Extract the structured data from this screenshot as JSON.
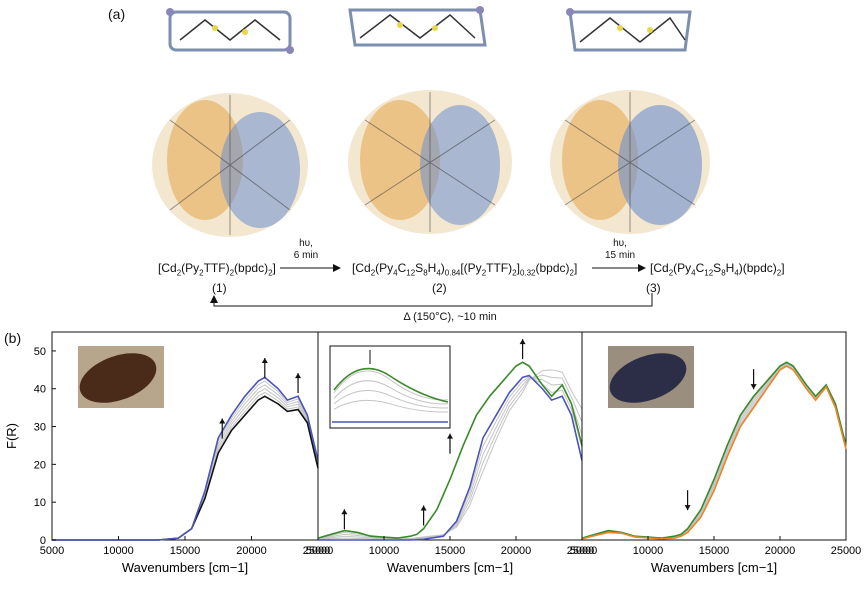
{
  "panel_a_label": "(a)",
  "panel_b_label": "(b)",
  "scheme": {
    "compound1": "[Cd2(Py2TTF)2(bpdc)2]",
    "compound2": "[Cd2(Py4C12S8H4)0.84[(Py2TTF)2]0.32(bpdc)2]",
    "compound3": "[Cd2(Py4C12S8H4)(bpdc)2]",
    "num1": "(1)",
    "num2": "(2)",
    "num3": "(3)",
    "step1_top": "hυ,",
    "step1_bottom": "6 min",
    "step2_top": "hυ,",
    "step2_bottom": "15 min",
    "reverse": "Δ (150°C), ~10 min"
  },
  "colors": {
    "black": "#111111",
    "blue": "#4a55b8",
    "green": "#3a8a2a",
    "orange": "#e8862a",
    "gray": "#c4c4c4",
    "cd_node": "#8a86b8",
    "sulfur": "#e6d84a",
    "oxygen": "#c0392b"
  },
  "chart_data": [
    {
      "type": "line",
      "xlabel": "Wavenumbers [cm−1]",
      "ylabel": "F(R)",
      "xlim": [
        5000,
        25000
      ],
      "ylim": [
        0,
        55
      ],
      "xticks": [
        "5000",
        "10000",
        "15000",
        "20000",
        "25000"
      ],
      "yticks": [
        "0",
        "10",
        "20",
        "30",
        "40",
        "50"
      ],
      "series": [
        {
          "color": "black",
          "x": [
            5000,
            10000,
            13000,
            14500,
            15500,
            16500,
            17500,
            18500,
            19500,
            20500,
            21000,
            22000,
            22700,
            23500,
            24200,
            25000
          ],
          "values": [
            0,
            0,
            0,
            0.5,
            3,
            11,
            23,
            29,
            33,
            37,
            38,
            36,
            34,
            34.5,
            31,
            19
          ]
        },
        {
          "color": "blue",
          "x": [
            5000,
            10000,
            13000,
            14500,
            15500,
            16500,
            17500,
            18500,
            19500,
            20500,
            21000,
            22000,
            22700,
            23500,
            24200,
            25000
          ],
          "values": [
            0,
            0,
            0,
            0.5,
            3,
            13,
            27,
            33,
            38,
            42,
            43,
            40,
            37,
            38,
            33,
            21
          ]
        }
      ],
      "inset": "photo of crystal (dark)",
      "arrows": "up"
    },
    {
      "type": "line",
      "xlabel": "Wavenumbers [cm−1]",
      "ylabel": "",
      "xlim": [
        5000,
        25000
      ],
      "ylim": [
        0,
        55
      ],
      "xticks": [
        "5000",
        "10000",
        "15000",
        "20000",
        "25000"
      ],
      "series": [
        {
          "color": "blue",
          "x": [
            5000,
            6000,
            7000,
            8000,
            10000,
            12000,
            13000,
            14500,
            15500,
            16500,
            17500,
            18500,
            19500,
            20500,
            21000,
            22000,
            22700,
            23500,
            24200,
            25000
          ],
          "values": [
            0,
            0,
            0,
            0,
            0,
            0,
            0.2,
            1,
            5,
            14,
            27,
            33,
            39,
            43,
            43.5,
            40,
            37,
            38,
            33,
            21
          ]
        },
        {
          "color": "green",
          "x": [
            5000,
            6000,
            7000,
            8000,
            9000,
            11000,
            12000,
            12500,
            13000,
            14000,
            15000,
            16000,
            17000,
            18000,
            19000,
            20000,
            20500,
            21000,
            22000,
            22700,
            23500,
            24200,
            25000
          ],
          "values": [
            0.5,
            1.5,
            2.5,
            2,
            1,
            0.5,
            1,
            1.5,
            3,
            8,
            16,
            25,
            33,
            38,
            42,
            46,
            47,
            46,
            41,
            38,
            41,
            36,
            25
          ]
        }
      ],
      "inset": "zoom of green peak",
      "arrows": "up"
    },
    {
      "type": "line",
      "xlabel": "Wavenumbers [cm−1]",
      "ylabel": "",
      "xlim": [
        5000,
        25000
      ],
      "ylim": [
        0,
        55
      ],
      "xticks": [
        "5000",
        "10000",
        "15000",
        "20000",
        "25000"
      ],
      "series": [
        {
          "color": "green",
          "x": [
            5000,
            6000,
            7000,
            8000,
            9000,
            11000,
            12000,
            12500,
            13000,
            14000,
            15000,
            16000,
            17000,
            18000,
            19000,
            20000,
            20500,
            21000,
            22000,
            22700,
            23500,
            24200,
            25000
          ],
          "values": [
            0.5,
            1.5,
            2.5,
            2,
            1,
            0.5,
            1,
            1.5,
            3,
            8,
            16,
            25,
            33,
            38,
            42,
            46,
            47,
            46,
            41,
            38,
            41,
            36,
            25
          ]
        },
        {
          "color": "orange",
          "x": [
            5000,
            6000,
            7000,
            8000,
            9000,
            11000,
            12000,
            12500,
            13000,
            14000,
            15000,
            16000,
            17000,
            18000,
            19000,
            20000,
            20500,
            21000,
            22000,
            22700,
            23500,
            24200,
            25000
          ],
          "values": [
            0.3,
            1.2,
            2,
            1.8,
            0.8,
            0.3,
            0.5,
            1,
            2,
            6,
            13,
            22,
            30,
            35,
            40,
            45,
            46,
            45,
            40,
            37,
            40.5,
            35,
            24
          ]
        }
      ],
      "inset": "photo of crystal (dark blue)",
      "arrows": "down"
    }
  ]
}
